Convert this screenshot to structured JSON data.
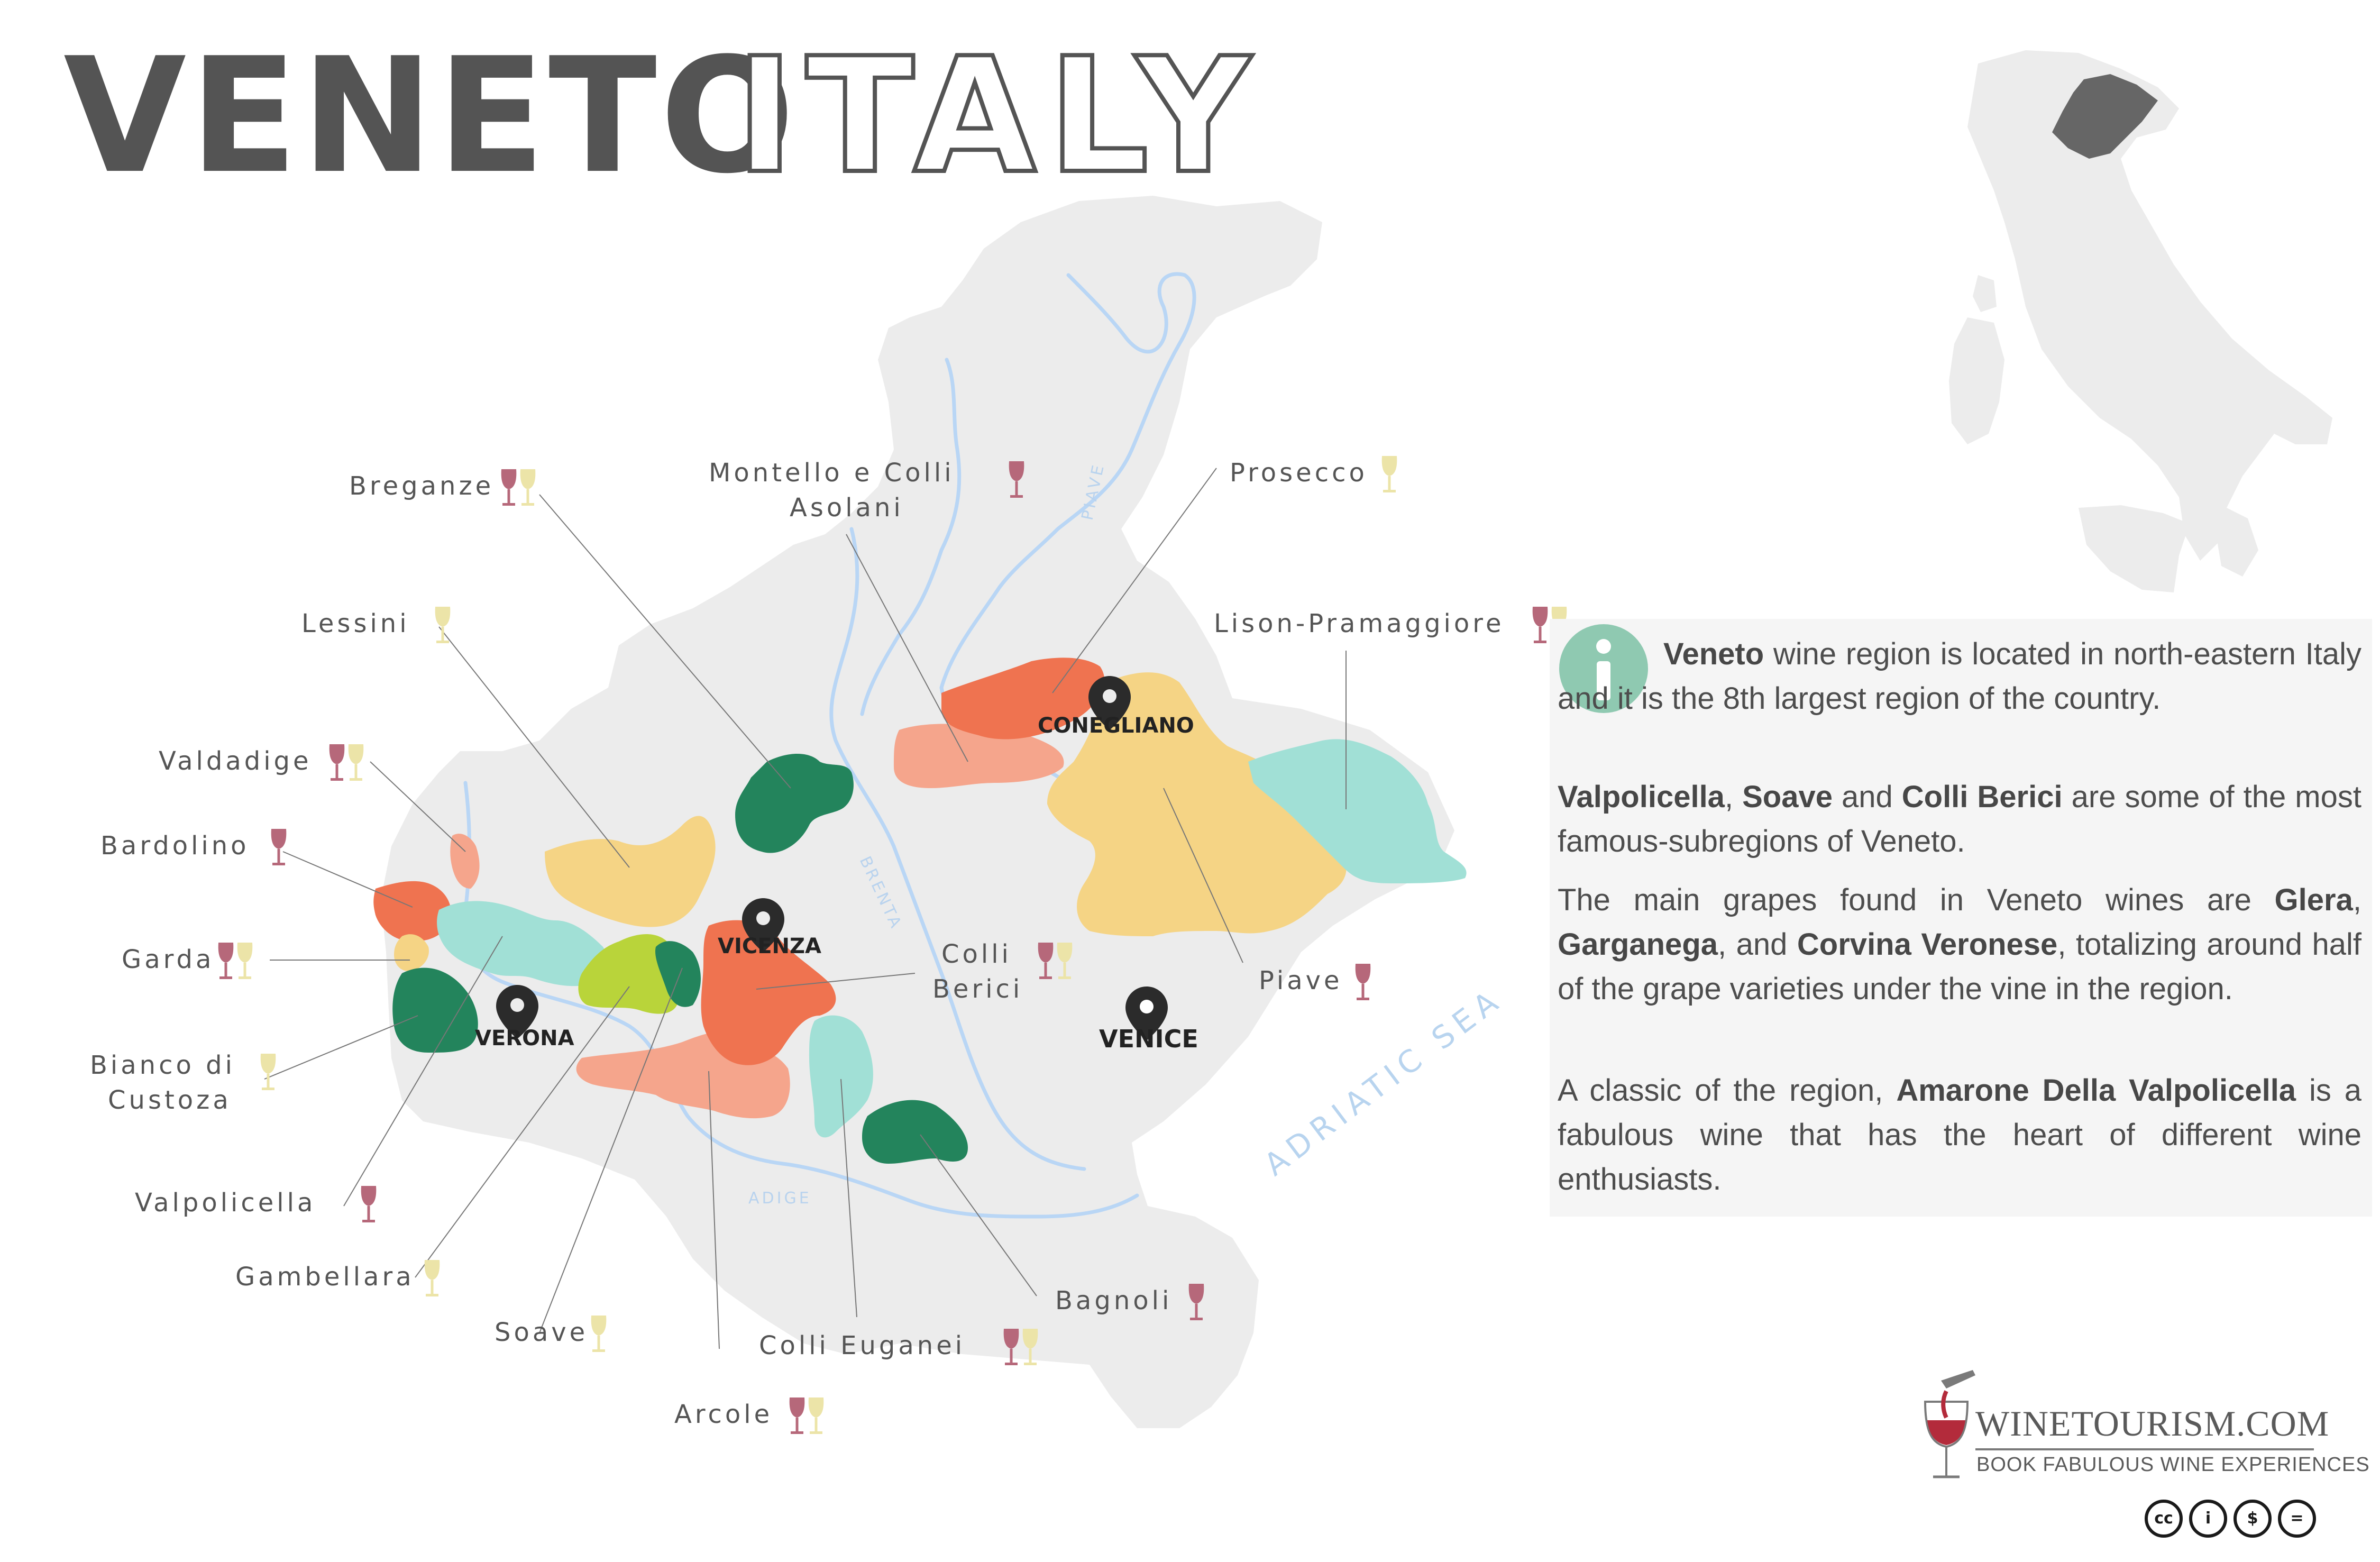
{
  "title": {
    "solid": "VENETO",
    "outline": "ITALY"
  },
  "colors": {
    "land": "#ececec",
    "river": "#b9d6f5",
    "red_wine": "#b6687a",
    "white_wine": "#ece4a8",
    "text": "#555555",
    "info_icon": "#8fc9b1"
  },
  "cities": {
    "conegliano": "CONEGLIANO",
    "vicenza": "VICENZA",
    "verona": "VERONA",
    "venice": "VENICE"
  },
  "rivers": {
    "piave": "PIAVE",
    "brenta": "BRENTA",
    "adige": "ADIGE"
  },
  "sea": "ADRIATIC SEA",
  "regions": [
    {
      "name": "Breganze",
      "wines": [
        "red",
        "white"
      ]
    },
    {
      "name": "Montello e Colli",
      "name_line2": "Asolani",
      "wines": [
        "red"
      ]
    },
    {
      "name": "Prosecco",
      "wines": [
        "white"
      ]
    },
    {
      "name": "Lessini",
      "wines": [
        "white"
      ]
    },
    {
      "name": "Lison-Pramaggiore",
      "wines": [
        "red",
        "white"
      ]
    },
    {
      "name": "Valdadige",
      "wines": [
        "red",
        "white"
      ]
    },
    {
      "name": "Bardolino",
      "wines": [
        "red"
      ]
    },
    {
      "name": "Garda",
      "wines": [
        "red",
        "white"
      ]
    },
    {
      "name": "Colli",
      "name_line2": "Berici",
      "wines": [
        "red",
        "white"
      ]
    },
    {
      "name": "Piave",
      "wines": [
        "red"
      ]
    },
    {
      "name": "Bianco di",
      "name_line2": "Custoza",
      "wines": [
        "white"
      ]
    },
    {
      "name": "Valpolicella",
      "wines": [
        "red"
      ]
    },
    {
      "name": "Gambellara",
      "wines": [
        "white"
      ]
    },
    {
      "name": "Soave",
      "wines": [
        "white"
      ]
    },
    {
      "name": "Bagnoli",
      "wines": [
        "red"
      ]
    },
    {
      "name": "Colli Euganei",
      "wines": [
        "red",
        "white"
      ]
    },
    {
      "name": "Arcole",
      "wines": [
        "red",
        "white"
      ]
    }
  ],
  "info": {
    "p1_b1": "Veneto",
    "p1_t1": " wine region is located in north-eastern Italy and it is the 8th largest region of the country.",
    "p2_b1": "Valpolicella",
    "p2_t1": ", ",
    "p2_b2": "Soave",
    "p2_t2": " and ",
    "p2_b3": "Colli Berici",
    "p2_t3": " are some of the most famous-subregions of Veneto.",
    "p3_t1": "The main grapes found in Veneto wines are ",
    "p3_b1": "Glera",
    "p3_t2": ", ",
    "p3_b2": "Garganega",
    "p3_t3": ", and ",
    "p3_b3": "Corvina Veronese",
    "p3_t4": ", totalizing around half of the grape varieties under the vine in the region.",
    "p4_t1": "A classic of the region, ",
    "p4_b1": "Amarone Della Valpolicella",
    "p4_t2": " is a fabulous wine that has the heart of different wine enthusiasts."
  },
  "logo": {
    "name": "WINETOURISM.COM",
    "tagline": "BOOK FABULOUS WINE EXPERIENCES"
  },
  "license_badges": [
    "cc",
    "i",
    "$",
    "="
  ]
}
